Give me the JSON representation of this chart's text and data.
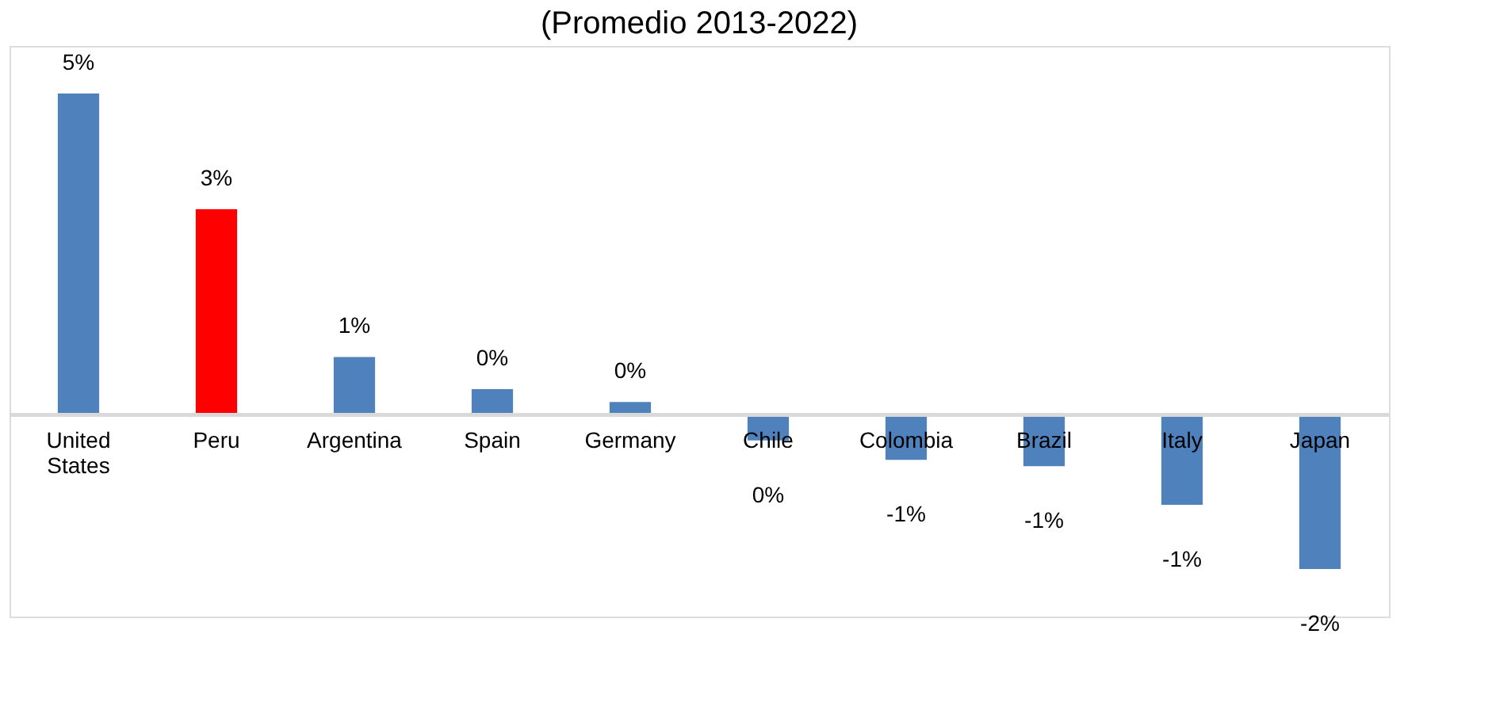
{
  "chart_data": {
    "type": "bar",
    "title": "(Promedio 2013-2022)",
    "categories": [
      "United States",
      "Peru",
      "Argentina",
      "Spain",
      "Germany",
      "Chile",
      "Colombia",
      "Brazil",
      "Italy",
      "Japan"
    ],
    "values": [
      5.0,
      3.2,
      0.9,
      0.4,
      0.2,
      -0.4,
      -0.7,
      -0.8,
      -1.4,
      -2.4
    ],
    "colors": [
      "#4f81bd",
      "#ff0000",
      "#4f81bd",
      "#4f81bd",
      "#4f81bd",
      "#4f81bd",
      "#4f81bd",
      "#4f81bd",
      "#4f81bd",
      "#4f81bd"
    ],
    "value_labels": [
      "5%",
      "3%",
      "1%",
      "0%",
      "0%",
      "0%",
      "-1%",
      "-1%",
      "-1%",
      "-2%"
    ],
    "tick_labels": false,
    "grid": false
  }
}
